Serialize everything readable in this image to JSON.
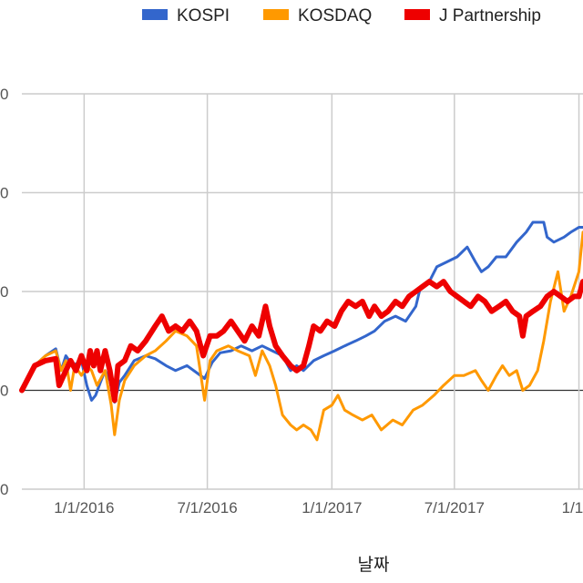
{
  "chart_data": {
    "type": "line",
    "xlabel": "날짜",
    "ylabel": "",
    "x_range": [
      "2015-10-01",
      "2018-01-07"
    ],
    "ylim": [
      -10,
      30
    ],
    "y_ticks": [
      -10,
      0,
      10,
      20,
      30
    ],
    "y_tick_labels": [
      "0",
      "0",
      "0",
      "0",
      "0"
    ],
    "x_ticks": [
      "2016-01-01",
      "2016-07-01",
      "2017-01-01",
      "2017-07-01",
      "2018-01-01"
    ],
    "x_tick_labels": [
      "1/1/2016",
      "7/1/2016",
      "1/1/2017",
      "7/1/2017",
      "1/1/2"
    ],
    "grid": true,
    "legend_position": "top",
    "series": [
      {
        "name": "KOSPI",
        "color": "#3366cc",
        "points": [
          [
            "2015-10-01",
            0
          ],
          [
            "2015-10-20",
            2.5
          ],
          [
            "2015-11-05",
            3.5
          ],
          [
            "2015-11-20",
            4.2
          ],
          [
            "2015-11-28",
            2.0
          ],
          [
            "2015-12-05",
            3.5
          ],
          [
            "2015-12-15",
            2.5
          ],
          [
            "2015-12-28",
            3.0
          ],
          [
            "2016-01-05",
            0.5
          ],
          [
            "2016-01-12",
            -1.0
          ],
          [
            "2016-01-18",
            -0.5
          ],
          [
            "2016-01-25",
            0.8
          ],
          [
            "2016-02-01",
            2.0
          ],
          [
            "2016-02-08",
            1.0
          ],
          [
            "2016-02-15",
            -1.2
          ],
          [
            "2016-02-22",
            0.8
          ],
          [
            "2016-03-01",
            1.5
          ],
          [
            "2016-03-15",
            3.0
          ],
          [
            "2016-04-01",
            3.5
          ],
          [
            "2016-04-15",
            3.2
          ],
          [
            "2016-05-01",
            2.5
          ],
          [
            "2016-05-15",
            2.0
          ],
          [
            "2016-06-01",
            2.5
          ],
          [
            "2016-06-15",
            1.8
          ],
          [
            "2016-06-27",
            1.2
          ],
          [
            "2016-07-08",
            2.8
          ],
          [
            "2016-07-20",
            3.8
          ],
          [
            "2016-08-05",
            4.0
          ],
          [
            "2016-08-20",
            4.5
          ],
          [
            "2016-09-05",
            4.0
          ],
          [
            "2016-09-20",
            4.5
          ],
          [
            "2016-10-05",
            4.0
          ],
          [
            "2016-10-20",
            3.5
          ],
          [
            "2016-11-01",
            2.0
          ],
          [
            "2016-11-10",
            2.5
          ],
          [
            "2016-11-20",
            2.0
          ],
          [
            "2016-12-05",
            3.0
          ],
          [
            "2016-12-20",
            3.5
          ],
          [
            "2017-01-05",
            4.0
          ],
          [
            "2017-01-20",
            4.5
          ],
          [
            "2017-02-05",
            5.0
          ],
          [
            "2017-02-20",
            5.5
          ],
          [
            "2017-03-05",
            6.0
          ],
          [
            "2017-03-20",
            7.0
          ],
          [
            "2017-04-05",
            7.5
          ],
          [
            "2017-04-20",
            7.0
          ],
          [
            "2017-05-05",
            8.5
          ],
          [
            "2017-05-12",
            10.5
          ],
          [
            "2017-05-25",
            11.0
          ],
          [
            "2017-06-05",
            12.5
          ],
          [
            "2017-06-20",
            13.0
          ],
          [
            "2017-07-05",
            13.5
          ],
          [
            "2017-07-20",
            14.5
          ],
          [
            "2017-08-01",
            13.0
          ],
          [
            "2017-08-10",
            12.0
          ],
          [
            "2017-08-20",
            12.5
          ],
          [
            "2017-09-01",
            13.5
          ],
          [
            "2017-09-15",
            13.5
          ],
          [
            "2017-10-01",
            15.0
          ],
          [
            "2017-10-15",
            16.0
          ],
          [
            "2017-10-25",
            17.0
          ],
          [
            "2017-11-10",
            17.0
          ],
          [
            "2017-11-15",
            15.5
          ],
          [
            "2017-11-25",
            15.0
          ],
          [
            "2017-12-10",
            15.5
          ],
          [
            "2017-12-20",
            16.0
          ],
          [
            "2018-01-01",
            16.5
          ],
          [
            "2018-01-07",
            16.5
          ]
        ]
      },
      {
        "name": "KOSDAQ",
        "color": "#ff9900",
        "points": [
          [
            "2015-10-01",
            0
          ],
          [
            "2015-10-20",
            2.5
          ],
          [
            "2015-11-05",
            3.5
          ],
          [
            "2015-11-20",
            4.0
          ],
          [
            "2015-11-28",
            2.0
          ],
          [
            "2015-12-05",
            3.0
          ],
          [
            "2015-12-12",
            0.0
          ],
          [
            "2015-12-18",
            2.5
          ],
          [
            "2015-12-28",
            1.5
          ],
          [
            "2016-01-05",
            2.5
          ],
          [
            "2016-01-12",
            2.0
          ],
          [
            "2016-01-20",
            0.5
          ],
          [
            "2016-02-01",
            2.0
          ],
          [
            "2016-02-10",
            -1.5
          ],
          [
            "2016-02-15",
            -4.5
          ],
          [
            "2016-02-22",
            -1.0
          ],
          [
            "2016-03-01",
            1.0
          ],
          [
            "2016-03-15",
            2.5
          ],
          [
            "2016-04-01",
            3.5
          ],
          [
            "2016-04-15",
            4.0
          ],
          [
            "2016-05-01",
            5.0
          ],
          [
            "2016-05-15",
            6.0
          ],
          [
            "2016-06-01",
            5.5
          ],
          [
            "2016-06-15",
            4.5
          ],
          [
            "2016-06-27",
            -1.0
          ],
          [
            "2016-07-05",
            3.0
          ],
          [
            "2016-07-15",
            4.0
          ],
          [
            "2016-08-01",
            4.5
          ],
          [
            "2016-08-15",
            4.0
          ],
          [
            "2016-09-01",
            3.5
          ],
          [
            "2016-09-10",
            1.5
          ],
          [
            "2016-09-20",
            4.0
          ],
          [
            "2016-10-01",
            2.5
          ],
          [
            "2016-10-10",
            0.5
          ],
          [
            "2016-10-20",
            -2.5
          ],
          [
            "2016-11-01",
            -3.5
          ],
          [
            "2016-11-10",
            -4.0
          ],
          [
            "2016-11-20",
            -3.5
          ],
          [
            "2016-12-01",
            -4.0
          ],
          [
            "2016-12-10",
            -5.0
          ],
          [
            "2016-12-20",
            -2.0
          ],
          [
            "2017-01-01",
            -1.5
          ],
          [
            "2017-01-10",
            -0.5
          ],
          [
            "2017-01-20",
            -2.0
          ],
          [
            "2017-02-01",
            -2.5
          ],
          [
            "2017-02-15",
            -3.0
          ],
          [
            "2017-03-01",
            -2.5
          ],
          [
            "2017-03-15",
            -4.0
          ],
          [
            "2017-04-01",
            -3.0
          ],
          [
            "2017-04-15",
            -3.5
          ],
          [
            "2017-05-01",
            -2.0
          ],
          [
            "2017-05-15",
            -1.5
          ],
          [
            "2017-06-01",
            -0.5
          ],
          [
            "2017-06-15",
            0.5
          ],
          [
            "2017-07-01",
            1.5
          ],
          [
            "2017-07-15",
            1.5
          ],
          [
            "2017-08-01",
            2.0
          ],
          [
            "2017-08-10",
            1.0
          ],
          [
            "2017-08-20",
            0.0
          ],
          [
            "2017-09-01",
            1.5
          ],
          [
            "2017-09-10",
            2.5
          ],
          [
            "2017-09-20",
            1.5
          ],
          [
            "2017-10-01",
            2.0
          ],
          [
            "2017-10-10",
            0.0
          ],
          [
            "2017-10-20",
            0.5
          ],
          [
            "2017-11-01",
            2.0
          ],
          [
            "2017-11-10",
            5.0
          ],
          [
            "2017-11-20",
            9.0
          ],
          [
            "2017-12-01",
            12.0
          ],
          [
            "2017-12-10",
            8.0
          ],
          [
            "2017-12-20",
            9.5
          ],
          [
            "2018-01-01",
            12.0
          ],
          [
            "2018-01-07",
            16.0
          ]
        ]
      },
      {
        "name": "J Partnership",
        "color": "#ee0000",
        "points": [
          [
            "2015-10-01",
            0
          ],
          [
            "2015-10-20",
            2.5
          ],
          [
            "2015-11-05",
            3.0
          ],
          [
            "2015-11-20",
            3.2
          ],
          [
            "2015-11-25",
            0.5
          ],
          [
            "2015-12-05",
            2.0
          ],
          [
            "2015-12-12",
            3.0
          ],
          [
            "2015-12-20",
            2.0
          ],
          [
            "2015-12-28",
            3.5
          ],
          [
            "2016-01-05",
            2.0
          ],
          [
            "2016-01-10",
            4.0
          ],
          [
            "2016-01-15",
            2.5
          ],
          [
            "2016-01-20",
            4.0
          ],
          [
            "2016-01-25",
            2.0
          ],
          [
            "2016-02-01",
            4.0
          ],
          [
            "2016-02-08",
            2.0
          ],
          [
            "2016-02-15",
            -1.0
          ],
          [
            "2016-02-20",
            2.5
          ],
          [
            "2016-03-01",
            3.0
          ],
          [
            "2016-03-10",
            4.5
          ],
          [
            "2016-03-20",
            4.0
          ],
          [
            "2016-04-01",
            5.0
          ],
          [
            "2016-04-15",
            6.5
          ],
          [
            "2016-04-25",
            7.5
          ],
          [
            "2016-05-05",
            6.0
          ],
          [
            "2016-05-15",
            6.5
          ],
          [
            "2016-05-25",
            6.0
          ],
          [
            "2016-06-05",
            7.0
          ],
          [
            "2016-06-15",
            6.0
          ],
          [
            "2016-06-25",
            3.5
          ],
          [
            "2016-07-05",
            5.5
          ],
          [
            "2016-07-15",
            5.5
          ],
          [
            "2016-07-25",
            6.0
          ],
          [
            "2016-08-05",
            7.0
          ],
          [
            "2016-08-15",
            6.0
          ],
          [
            "2016-08-25",
            5.0
          ],
          [
            "2016-09-05",
            6.5
          ],
          [
            "2016-09-15",
            5.5
          ],
          [
            "2016-09-25",
            8.5
          ],
          [
            "2016-10-01",
            6.5
          ],
          [
            "2016-10-10",
            4.5
          ],
          [
            "2016-10-20",
            3.5
          ],
          [
            "2016-11-01",
            2.5
          ],
          [
            "2016-11-10",
            2.0
          ],
          [
            "2016-11-20",
            2.5
          ],
          [
            "2016-11-28",
            4.5
          ],
          [
            "2016-12-05",
            6.5
          ],
          [
            "2016-12-15",
            6.0
          ],
          [
            "2016-12-25",
            7.0
          ],
          [
            "2017-01-05",
            6.5
          ],
          [
            "2017-01-15",
            8.0
          ],
          [
            "2017-01-25",
            9.0
          ],
          [
            "2017-02-05",
            8.5
          ],
          [
            "2017-02-15",
            9.0
          ],
          [
            "2017-02-25",
            7.5
          ],
          [
            "2017-03-05",
            8.5
          ],
          [
            "2017-03-15",
            7.5
          ],
          [
            "2017-03-25",
            8.0
          ],
          [
            "2017-04-05",
            9.0
          ],
          [
            "2017-04-15",
            8.5
          ],
          [
            "2017-04-25",
            9.5
          ],
          [
            "2017-05-05",
            10.0
          ],
          [
            "2017-05-15",
            10.5
          ],
          [
            "2017-05-25",
            11.0
          ],
          [
            "2017-06-05",
            10.5
          ],
          [
            "2017-06-15",
            11.0
          ],
          [
            "2017-06-25",
            10.0
          ],
          [
            "2017-07-05",
            9.5
          ],
          [
            "2017-07-15",
            9.0
          ],
          [
            "2017-07-25",
            8.5
          ],
          [
            "2017-08-05",
            9.5
          ],
          [
            "2017-08-15",
            9.0
          ],
          [
            "2017-08-25",
            8.0
          ],
          [
            "2017-09-05",
            8.5
          ],
          [
            "2017-09-15",
            9.0
          ],
          [
            "2017-09-25",
            8.0
          ],
          [
            "2017-10-05",
            7.5
          ],
          [
            "2017-10-10",
            5.5
          ],
          [
            "2017-10-15",
            7.5
          ],
          [
            "2017-10-25",
            8.0
          ],
          [
            "2017-11-05",
            8.5
          ],
          [
            "2017-11-15",
            9.5
          ],
          [
            "2017-11-25",
            10.0
          ],
          [
            "2017-12-05",
            9.5
          ],
          [
            "2017-12-15",
            9.0
          ],
          [
            "2017-12-25",
            9.5
          ],
          [
            "2018-01-01",
            9.5
          ],
          [
            "2018-01-07",
            11.0
          ]
        ]
      }
    ]
  }
}
